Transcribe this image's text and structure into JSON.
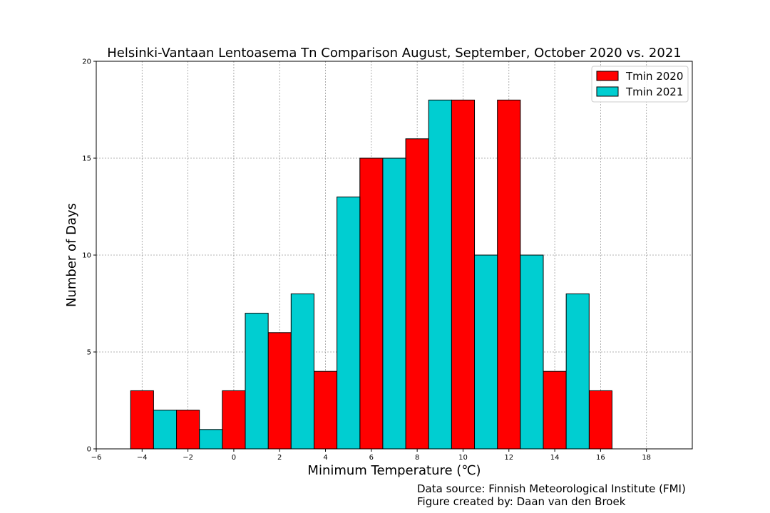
{
  "chart_data": {
    "type": "bar",
    "title": "Helsinki-Vantaan Lentoasema Tn Comparison August, September, October 2020 vs. 2021",
    "xlabel": "Minimum Temperature (℃)",
    "ylabel": "Number of Days",
    "xlim": [
      -6,
      20
    ],
    "ylim": [
      0,
      20
    ],
    "x_ticks": [
      -6,
      -4,
      -2,
      0,
      2,
      4,
      6,
      8,
      10,
      12,
      14,
      16,
      18
    ],
    "y_ticks": [
      0,
      5,
      10,
      15,
      20
    ],
    "grid": true,
    "legend_position": "top-right",
    "bin_width": 2,
    "series": [
      {
        "name": "Tmin 2020",
        "color": "#ff0000",
        "x": [
          -4,
          -2,
          0,
          2,
          4,
          6,
          8,
          10,
          12,
          14,
          16
        ],
        "values": [
          3,
          2,
          3,
          6,
          4,
          15,
          16,
          18,
          18,
          4,
          3
        ]
      },
      {
        "name": "Tmin 2021",
        "color": "#00ced1",
        "x": [
          -3,
          -1,
          1,
          3,
          5,
          7,
          9,
          11,
          13,
          15
        ],
        "values": [
          2,
          1,
          7,
          8,
          13,
          15,
          18,
          10,
          10,
          8
        ]
      }
    ]
  },
  "credits": {
    "source": "Data source: Finnish Meteorological Institute (FMI)",
    "author": "Figure created by: Daan van den Broek"
  }
}
